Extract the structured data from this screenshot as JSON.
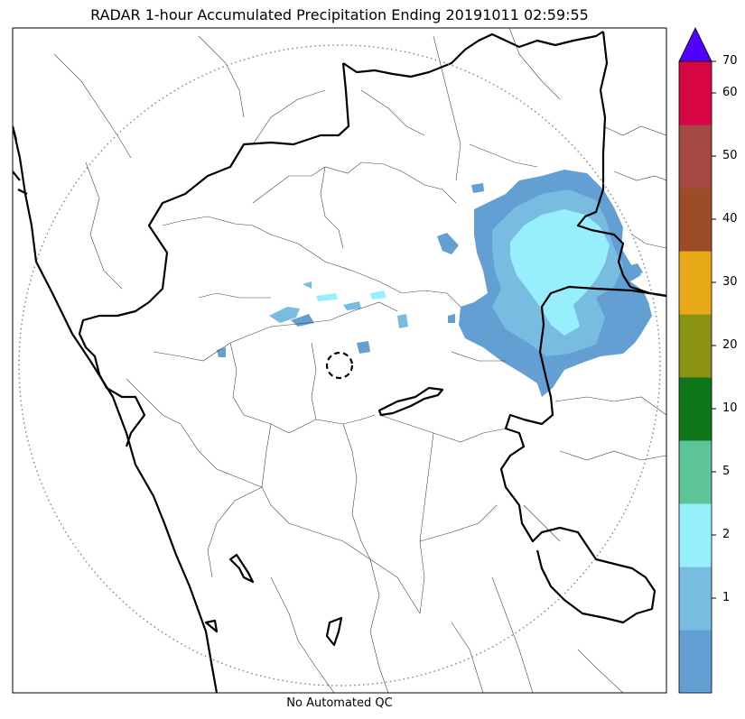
{
  "title": "RADAR 1-hour Accumulated Precipitation Ending 20191011 02:59:55",
  "footer": "No Automated QC",
  "colorbar": {
    "bins": [
      {
        "label": "",
        "color": "#639fd2"
      },
      {
        "label": "1",
        "color": "#79bce1"
      },
      {
        "label": "2",
        "color": "#97eefc"
      },
      {
        "label": "5",
        "color": "#5dc49a"
      },
      {
        "label": "10",
        "color": "#0f7619"
      },
      {
        "label": "20",
        "color": "#8c9314"
      },
      {
        "label": "30",
        "color": "#e8a919"
      },
      {
        "label": "40",
        "color": "#9c4c26"
      },
      {
        "label": "50",
        "color": "#a54a43"
      },
      {
        "label": "60",
        "color": "#d60543"
      }
    ],
    "top_label": "70",
    "extend_color": "#5000fc"
  }
}
